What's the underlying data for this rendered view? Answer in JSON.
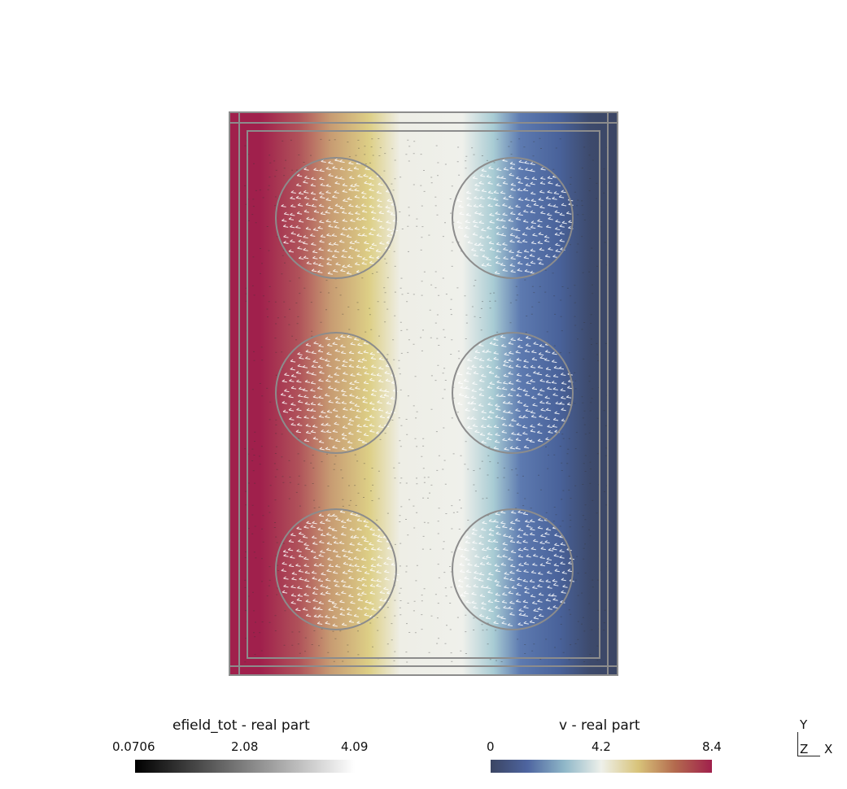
{
  "legend_efield": {
    "title": "efield_tot - real part",
    "ticks": [
      "0.0706",
      "2.08",
      "4.09"
    ],
    "colormap": [
      "#000000",
      "#ffffff"
    ]
  },
  "legend_v": {
    "title": "v - real part",
    "ticks": [
      "0",
      "4.2",
      "8.4"
    ],
    "colormap": [
      "#3b4563",
      "#4e65a0",
      "#8fb7c8",
      "#eef0ea",
      "#d8c37a",
      "#b36a4e",
      "#a0204c"
    ]
  },
  "axes": {
    "y": "Y",
    "z": "Z",
    "x": "X"
  },
  "colors": {
    "outline": "#8c8c8c",
    "arrow": "#ffffff",
    "arrow_dark": "#333333"
  }
}
